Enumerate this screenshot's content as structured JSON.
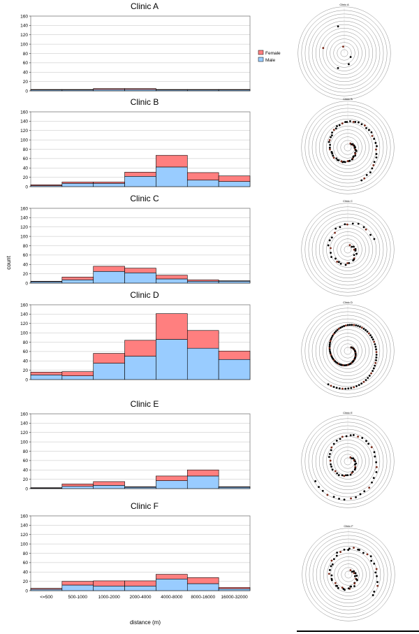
{
  "y_axis_label": "count",
  "x_axis_label": "distance (m)",
  "legend": [
    {
      "name": "Female",
      "color": "#ff7f7f"
    },
    {
      "name": "Male",
      "color": "#99ccff"
    }
  ],
  "chart_data": [
    {
      "type": "bar",
      "title": "Clinic A",
      "categories": [
        "<=500",
        "500-1000",
        "1000-2000",
        "2000-4000",
        "4000-8000",
        "8000-16000",
        "16000-32000"
      ],
      "ylim": [
        0,
        160
      ],
      "yticks": [
        0,
        20,
        40,
        60,
        80,
        100,
        120,
        140,
        160
      ],
      "series": [
        {
          "name": "Male",
          "values": [
            2,
            2,
            3,
            3,
            2,
            2,
            2
          ]
        },
        {
          "name": "Female",
          "values": [
            1,
            1,
            2,
            2,
            1,
            1,
            1
          ]
        }
      ]
    },
    {
      "type": "bar",
      "title": "Clinic B",
      "categories": [
        "<=500",
        "500-1000",
        "1000-2000",
        "2000-4000",
        "4000-8000",
        "8000-16000",
        "16000-32000"
      ],
      "ylim": [
        0,
        160
      ],
      "yticks": [
        0,
        20,
        40,
        60,
        80,
        100,
        120,
        140,
        160
      ],
      "series": [
        {
          "name": "Male",
          "values": [
            2,
            7,
            7,
            22,
            42,
            14,
            11
          ]
        },
        {
          "name": "Female",
          "values": [
            2,
            3,
            3,
            9,
            25,
            16,
            12
          ]
        }
      ]
    },
    {
      "type": "bar",
      "title": "Clinic C",
      "categories": [
        "<=500",
        "500-1000",
        "1000-2000",
        "2000-4000",
        "4000-8000",
        "8000-16000",
        "16000-32000"
      ],
      "ylim": [
        0,
        160
      ],
      "yticks": [
        0,
        20,
        40,
        60,
        80,
        100,
        120,
        140,
        160
      ],
      "series": [
        {
          "name": "Male",
          "values": [
            3,
            7,
            25,
            22,
            9,
            4,
            4
          ]
        },
        {
          "name": "Female",
          "values": [
            1,
            6,
            11,
            10,
            8,
            3,
            1
          ]
        }
      ]
    },
    {
      "type": "bar",
      "title": "Clinic D",
      "categories": [
        "<=500",
        "500-1000",
        "1000-2000",
        "2000-4000",
        "4000-8000",
        "8000-16000",
        "16000-32000"
      ],
      "ylim": [
        0,
        160
      ],
      "yticks": [
        0,
        20,
        40,
        60,
        80,
        100,
        120,
        140,
        160
      ],
      "series": [
        {
          "name": "Male",
          "values": [
            10,
            8,
            35,
            50,
            86,
            67,
            43
          ]
        },
        {
          "name": "Female",
          "values": [
            6,
            9,
            21,
            34,
            55,
            38,
            18
          ]
        }
      ]
    },
    {
      "type": "bar",
      "title": "Clinic E",
      "categories": [
        "<=500",
        "500-1000",
        "1000-2000",
        "2000-4000",
        "4000-8000",
        "8000-16000",
        "16000-32000"
      ],
      "ylim": [
        0,
        160
      ],
      "yticks": [
        0,
        20,
        40,
        60,
        80,
        100,
        120,
        140,
        160
      ],
      "series": [
        {
          "name": "Male",
          "values": [
            1,
            5,
            7,
            3,
            17,
            27,
            3
          ]
        },
        {
          "name": "Female",
          "values": [
            1,
            5,
            8,
            1,
            10,
            13,
            1
          ]
        }
      ]
    },
    {
      "type": "bar",
      "title": "Clinic F",
      "categories": [
        "<=500",
        "500-1000",
        "1000-2000",
        "2000-4000",
        "4000-8000",
        "8000-16000",
        "16000-32000"
      ],
      "ylim": [
        0,
        160
      ],
      "yticks": [
        0,
        20,
        40,
        60,
        80,
        100,
        120,
        140,
        160
      ],
      "series": [
        {
          "name": "Male",
          "values": [
            3,
            12,
            10,
            10,
            25,
            15,
            4
          ]
        },
        {
          "name": "Female",
          "values": [
            2,
            8,
            11,
            11,
            10,
            13,
            3
          ]
        }
      ]
    }
  ],
  "spiral_titles": [
    "Clinic A",
    "Clinic B",
    "Clinic C",
    "Clinic D",
    "Clinic E",
    "Clinic F"
  ]
}
